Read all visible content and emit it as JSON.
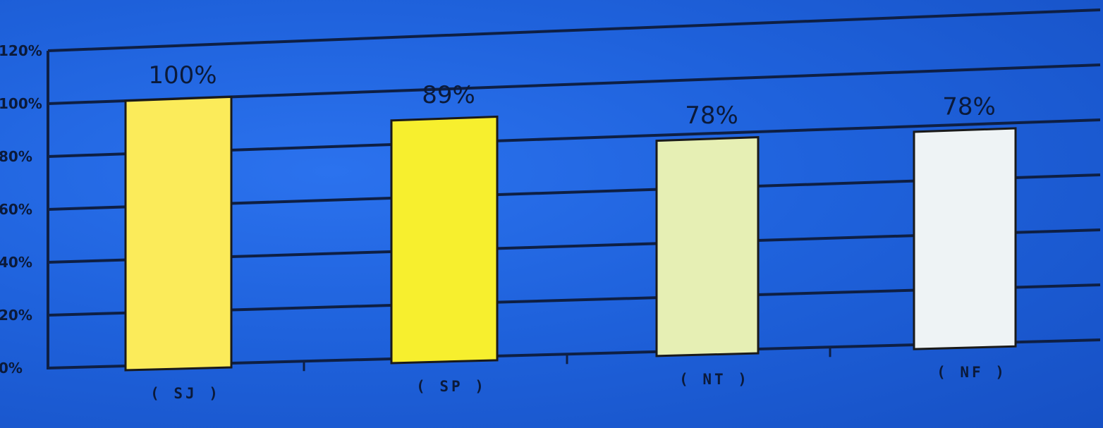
{
  "chart_data": {
    "type": "bar",
    "title": "",
    "xlabel": "",
    "ylabel": "",
    "categories": [
      "( SJ )",
      "( SP )",
      "( NT )",
      "( NF )"
    ],
    "values": [
      100,
      89,
      78,
      78
    ],
    "data_labels": [
      "100%",
      "89%",
      "78%",
      "78%"
    ],
    "ylim": [
      0,
      120
    ],
    "ytick_labels": [
      "0%",
      "20%",
      "40%",
      "60%",
      "80%",
      "100%",
      "120%"
    ],
    "grid": true,
    "legend": "none",
    "colors": [
      "#fbeb5a",
      "#f7ef2e",
      "#e6efb4",
      "#eef3f5"
    ]
  }
}
